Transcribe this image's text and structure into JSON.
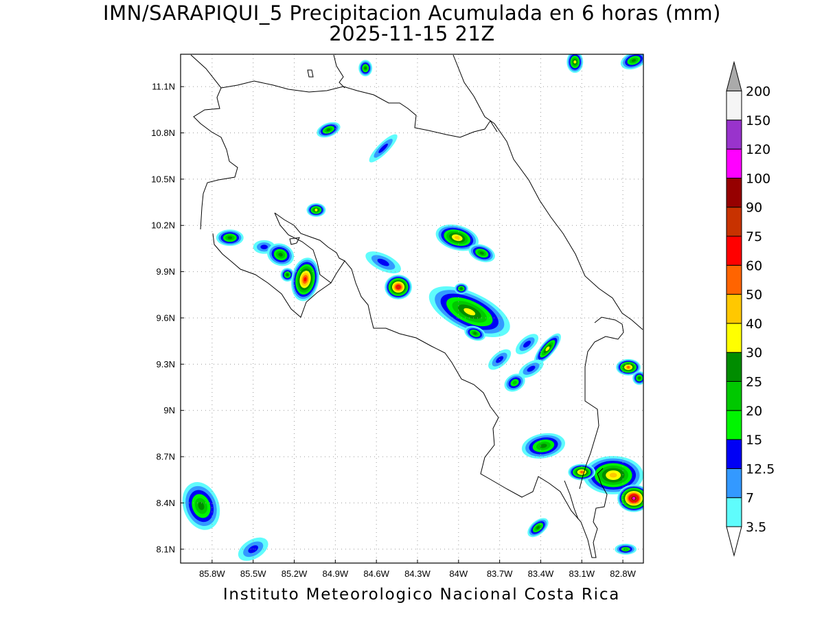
{
  "title": {
    "line1": "IMN/SARAPIQUI_5 Precipitacion Acumulada en 6 horas (mm)",
    "line2": "2025-11-15 21Z"
  },
  "footer": "Instituto Meteorologico Nacional Costa Rica",
  "map": {
    "lon_range": [
      -86.03,
      -82.65
    ],
    "lat_range": [
      8.01,
      11.31
    ],
    "lon_ticks": [
      {
        "v": -85.8,
        "label": "85.8W"
      },
      {
        "v": -85.5,
        "label": "85.5W"
      },
      {
        "v": -85.2,
        "label": "85.2W"
      },
      {
        "v": -84.9,
        "label": "84.9W"
      },
      {
        "v": -84.6,
        "label": "84.6W"
      },
      {
        "v": -84.3,
        "label": "84.3W"
      },
      {
        "v": -84.0,
        "label": "84W"
      },
      {
        "v": -83.7,
        "label": "83.7W"
      },
      {
        "v": -83.4,
        "label": "83.4W"
      },
      {
        "v": -83.1,
        "label": "83.1W"
      },
      {
        "v": -82.8,
        "label": "82.8W"
      }
    ],
    "lat_ticks": [
      {
        "v": 11.1,
        "label": "11.1N"
      },
      {
        "v": 10.8,
        "label": "10.8N"
      },
      {
        "v": 10.5,
        "label": "10.5N"
      },
      {
        "v": 10.2,
        "label": "10.2N"
      },
      {
        "v": 9.9,
        "label": "9.9N"
      },
      {
        "v": 9.6,
        "label": "9.6N"
      },
      {
        "v": 9.3,
        "label": "9.3N"
      },
      {
        "v": 9.0,
        "label": "9N"
      },
      {
        "v": 8.7,
        "label": "8.7N"
      },
      {
        "v": 8.4,
        "label": "8.4N"
      },
      {
        "v": 8.1,
        "label": "8.1N"
      }
    ],
    "grid": true
  },
  "colorbar": {
    "levels": [
      {
        "label": "3.5",
        "color": "#5ffcfc"
      },
      {
        "label": "7",
        "color": "#3399ff"
      },
      {
        "label": "12.5",
        "color": "#0000f5"
      },
      {
        "label": "15",
        "color": "#00f500"
      },
      {
        "label": "20",
        "color": "#00c800"
      },
      {
        "label": "25",
        "color": "#008c00"
      },
      {
        "label": "30",
        "color": "#ffff00"
      },
      {
        "label": "40",
        "color": "#ffc800"
      },
      {
        "label": "50",
        "color": "#ff6400"
      },
      {
        "label": "60",
        "color": "#ff0000"
      },
      {
        "label": "75",
        "color": "#c83200"
      },
      {
        "label": "90",
        "color": "#960000"
      },
      {
        "label": "100",
        "color": "#ff00ff"
      },
      {
        "label": "120",
        "color": "#9933cc"
      },
      {
        "label": "150",
        "color": "#f5f5f5"
      },
      {
        "label": "200",
        "color": ""
      }
    ],
    "under_color": "#ffffff",
    "over_color": "#aaaaaa"
  },
  "cells": [
    {
      "lon": -85.88,
      "lat": 8.38,
      "rx": 0.13,
      "ry": 0.18,
      "rot": -20,
      "peak": 5
    },
    {
      "lon": -85.5,
      "lat": 8.1,
      "rx": 0.12,
      "ry": 0.07,
      "rot": -30,
      "peak": 2
    },
    {
      "lon": -85.67,
      "lat": 10.12,
      "rx": 0.1,
      "ry": 0.06,
      "rot": 0,
      "peak": 5
    },
    {
      "lon": -85.42,
      "lat": 10.06,
      "rx": 0.08,
      "ry": 0.05,
      "rot": 0,
      "peak": 2
    },
    {
      "lon": -85.3,
      "lat": 10.01,
      "rx": 0.1,
      "ry": 0.08,
      "rot": 20,
      "peak": 5
    },
    {
      "lon": -85.25,
      "lat": 9.88,
      "rx": 0.05,
      "ry": 0.05,
      "rot": 0,
      "peak": 5
    },
    {
      "lon": -85.12,
      "lat": 9.85,
      "rx": 0.1,
      "ry": 0.16,
      "rot": 10,
      "peak": 9
    },
    {
      "lon": -85.04,
      "lat": 10.3,
      "rx": 0.07,
      "ry": 0.05,
      "rot": 0,
      "peak": 6
    },
    {
      "lon": -84.55,
      "lat": 9.96,
      "rx": 0.14,
      "ry": 0.06,
      "rot": 25,
      "peak": 2
    },
    {
      "lon": -84.44,
      "lat": 9.8,
      "rx": 0.1,
      "ry": 0.09,
      "rot": 0,
      "peak": 10
    },
    {
      "lon": -84.01,
      "lat": 10.12,
      "rx": 0.16,
      "ry": 0.09,
      "rot": 15,
      "peak": 7
    },
    {
      "lon": -83.83,
      "lat": 10.02,
      "rx": 0.1,
      "ry": 0.06,
      "rot": 20,
      "peak": 5
    },
    {
      "lon": -83.92,
      "lat": 9.64,
      "rx": 0.32,
      "ry": 0.14,
      "rot": 25,
      "peak": 6
    },
    {
      "lon": -83.98,
      "lat": 9.79,
      "rx": 0.05,
      "ry": 0.04,
      "rot": 0,
      "peak": 5
    },
    {
      "lon": -83.88,
      "lat": 9.5,
      "rx": 0.08,
      "ry": 0.05,
      "rot": 20,
      "peak": 5
    },
    {
      "lon": -83.35,
      "lat": 9.4,
      "rx": 0.14,
      "ry": 0.05,
      "rot": -50,
      "peak": 6
    },
    {
      "lon": -83.5,
      "lat": 9.43,
      "rx": 0.1,
      "ry": 0.05,
      "rot": -40,
      "peak": 2
    },
    {
      "lon": -83.47,
      "lat": 9.27,
      "rx": 0.1,
      "ry": 0.05,
      "rot": -30,
      "peak": 2
    },
    {
      "lon": -83.59,
      "lat": 9.18,
      "rx": 0.08,
      "ry": 0.06,
      "rot": -30,
      "peak": 4
    },
    {
      "lon": -83.7,
      "lat": 9.33,
      "rx": 0.1,
      "ry": 0.05,
      "rot": -40,
      "peak": 2
    },
    {
      "lon": -83.38,
      "lat": 8.77,
      "rx": 0.16,
      "ry": 0.09,
      "rot": -10,
      "peak": 5
    },
    {
      "lon": -82.87,
      "lat": 8.58,
      "rx": 0.22,
      "ry": 0.14,
      "rot": 0,
      "peak": 7
    },
    {
      "lon": -82.72,
      "lat": 8.43,
      "rx": 0.12,
      "ry": 0.1,
      "rot": 0,
      "peak": 12
    },
    {
      "lon": -82.76,
      "lat": 9.28,
      "rx": 0.09,
      "ry": 0.06,
      "rot": 0,
      "peak": 8
    },
    {
      "lon": -82.68,
      "lat": 9.21,
      "rx": 0.05,
      "ry": 0.05,
      "rot": 0,
      "peak": 5
    },
    {
      "lon": -83.42,
      "lat": 8.24,
      "rx": 0.09,
      "ry": 0.05,
      "rot": -40,
      "peak": 5
    },
    {
      "lon": -83.15,
      "lat": 11.26,
      "rx": 0.06,
      "ry": 0.08,
      "rot": 0,
      "peak": 6
    },
    {
      "lon": -82.72,
      "lat": 11.27,
      "rx": 0.1,
      "ry": 0.06,
      "rot": -20,
      "peak": 5
    },
    {
      "lon": -84.95,
      "lat": 10.82,
      "rx": 0.09,
      "ry": 0.05,
      "rot": -20,
      "peak": 5
    },
    {
      "lon": -84.68,
      "lat": 11.22,
      "rx": 0.05,
      "ry": 0.06,
      "rot": 0,
      "peak": 5
    },
    {
      "lon": -84.55,
      "lat": 10.7,
      "rx": 0.14,
      "ry": 0.04,
      "rot": -45,
      "peak": 2
    },
    {
      "lon": -82.78,
      "lat": 8.1,
      "rx": 0.08,
      "ry": 0.04,
      "rot": 0,
      "peak": 4
    },
    {
      "lon": -83.1,
      "lat": 8.6,
      "rx": 0.1,
      "ry": 0.06,
      "rot": 0,
      "peak": 8
    }
  ]
}
